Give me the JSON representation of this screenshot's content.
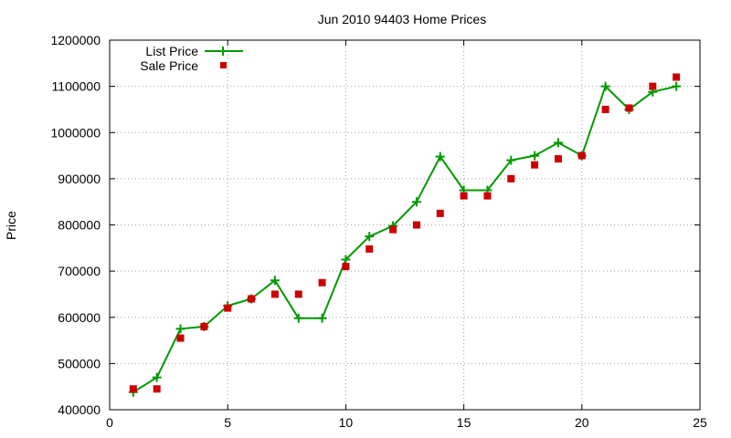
{
  "chart_data": {
    "type": "line",
    "title": "Jun 2010 94403 Home Prices",
    "xlabel": "",
    "ylabel": "Price",
    "xlim": [
      0,
      25
    ],
    "ylim": [
      400000,
      1200000
    ],
    "x_ticks": [
      0,
      5,
      10,
      15,
      20,
      25
    ],
    "y_ticks": [
      400000,
      500000,
      600000,
      700000,
      800000,
      900000,
      1000000,
      1100000,
      1200000
    ],
    "grid": true,
    "legend_position": "top-left",
    "x": [
      1,
      2,
      3,
      4,
      5,
      6,
      7,
      8,
      9,
      10,
      11,
      12,
      13,
      14,
      15,
      16,
      17,
      18,
      19,
      20,
      21,
      22,
      23,
      24
    ],
    "series": [
      {
        "name": "List Price",
        "style": "line-points",
        "marker": "plus",
        "color": "#009900",
        "values": [
          438000,
          470000,
          575000,
          580000,
          625000,
          640000,
          680000,
          598000,
          598000,
          725000,
          775000,
          798000,
          850000,
          948000,
          875000,
          875000,
          940000,
          950000,
          978000,
          950000,
          1100000,
          1050000,
          1088000,
          1100000
        ]
      },
      {
        "name": "Sale Price",
        "style": "points",
        "marker": "square",
        "color": "#cc0000",
        "values": [
          445000,
          445000,
          555000,
          580000,
          620000,
          640000,
          650000,
          650000,
          675000,
          710000,
          748000,
          790000,
          800000,
          825000,
          863000,
          863000,
          900000,
          930000,
          943000,
          950000,
          1050000,
          1053000,
          1100000,
          1120000
        ]
      }
    ]
  }
}
